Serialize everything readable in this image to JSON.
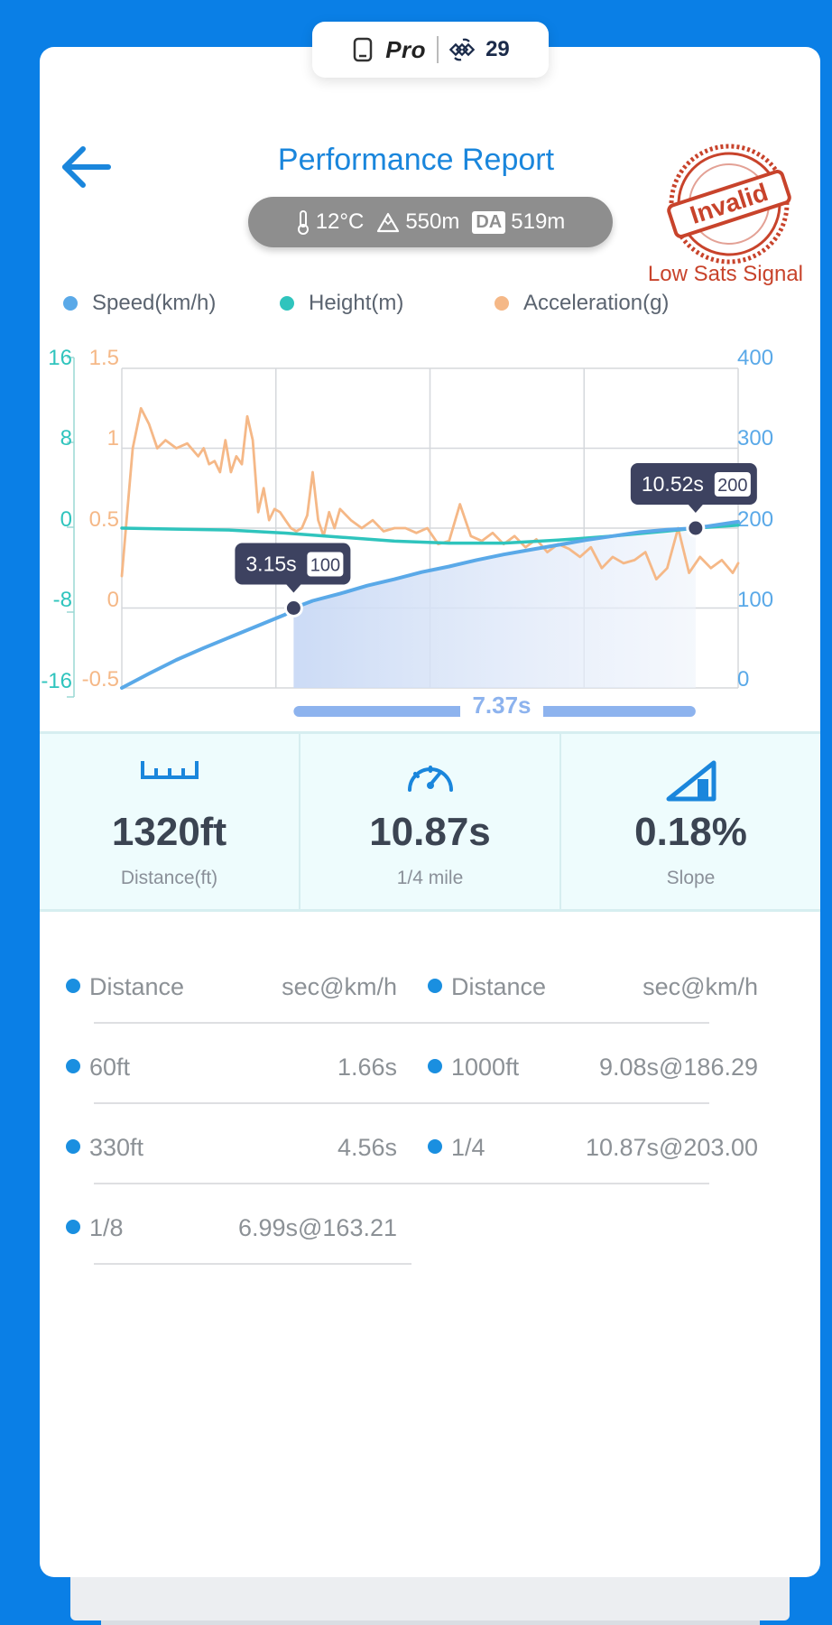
{
  "device": {
    "model_label": "Pro",
    "satellites": "29"
  },
  "header": {
    "title": "Performance Report",
    "back_icon": "arrow-left-icon"
  },
  "environment": {
    "temperature": "12°C",
    "altitude": "550m",
    "da_badge": "DA",
    "density_altitude": "519m"
  },
  "status": {
    "stamp_text": "Invalid",
    "stamp_color": "#c8432b",
    "note": "Low Sats Signal"
  },
  "legend": [
    {
      "label": "Speed(km/h)",
      "color": "#5aa9e8"
    },
    {
      "label": "Height(m)",
      "color": "#2fc4bd"
    },
    {
      "label": "Acceleration(g)",
      "color": "#f5b887"
    }
  ],
  "chart_data": {
    "type": "line",
    "x_range_s": [
      0,
      11.3
    ],
    "grid": true,
    "axes": {
      "height_left": {
        "ticks": [
          "16",
          "8",
          "0",
          "-8",
          "-16"
        ],
        "range": [
          -16,
          16
        ],
        "color": "#2fc4bd"
      },
      "accel_left": {
        "ticks": [
          "1.5",
          "1",
          "0.5",
          "0",
          "-0.5"
        ],
        "range": [
          -0.5,
          1.5
        ],
        "color": "#f5b887"
      },
      "speed_right": {
        "ticks": [
          "400",
          "300",
          "200",
          "100",
          "0"
        ],
        "range": [
          0,
          400
        ],
        "color": "#5aa9e8"
      }
    },
    "series": [
      {
        "name": "Speed(km/h)",
        "x": [
          0,
          0.5,
          1,
          1.5,
          2,
          2.5,
          3,
          3.15,
          3.5,
          4,
          4.5,
          5,
          5.5,
          6,
          6.5,
          7,
          7.5,
          8,
          8.5,
          9,
          9.5,
          10,
          10.52,
          11.3
        ],
        "y": [
          0,
          18,
          35,
          50,
          64,
          78,
          92,
          100,
          109,
          118,
          128,
          136,
          145,
          152,
          160,
          167,
          173,
          179,
          185,
          190,
          195,
          198,
          200,
          208
        ]
      },
      {
        "name": "Height(m)",
        "x": [
          0,
          1,
          2,
          3,
          4,
          5,
          6,
          7,
          8,
          9,
          10,
          10.52,
          11.3
        ],
        "y": [
          0,
          -0.1,
          -0.2,
          -0.5,
          -0.9,
          -1.3,
          -1.5,
          -1.5,
          -1.2,
          -0.8,
          -0.3,
          0,
          0.3
        ]
      },
      {
        "name": "Acceleration(g)",
        "x": [
          0,
          0.1,
          0.2,
          0.35,
          0.5,
          0.65,
          0.8,
          1,
          1.2,
          1.4,
          1.5,
          1.6,
          1.7,
          1.8,
          1.9,
          2,
          2.1,
          2.2,
          2.3,
          2.4,
          2.5,
          2.6,
          2.7,
          2.8,
          2.9,
          3,
          3.1,
          3.2,
          3.3,
          3.4,
          3.5,
          3.6,
          3.7,
          3.8,
          3.9,
          4.0,
          4.2,
          4.4,
          4.6,
          4.8,
          5.0,
          5.2,
          5.4,
          5.6,
          5.8,
          6.0,
          6.2,
          6.4,
          6.6,
          6.8,
          7.0,
          7.2,
          7.4,
          7.6,
          7.8,
          8.0,
          8.2,
          8.4,
          8.6,
          8.8,
          9.0,
          9.2,
          9.4,
          9.6,
          9.8,
          10.0,
          10.2,
          10.4,
          10.6,
          10.8,
          11.0,
          11.2,
          11.3
        ],
        "y": [
          0.2,
          0.6,
          1.0,
          1.25,
          1.15,
          1.0,
          1.05,
          1.0,
          1.03,
          0.95,
          1.0,
          0.9,
          0.92,
          0.85,
          1.05,
          0.85,
          0.95,
          0.9,
          1.2,
          1.05,
          0.6,
          0.75,
          0.55,
          0.62,
          0.6,
          0.55,
          0.5,
          0.48,
          0.5,
          0.58,
          0.85,
          0.55,
          0.45,
          0.6,
          0.5,
          0.62,
          0.55,
          0.5,
          0.55,
          0.48,
          0.5,
          0.5,
          0.47,
          0.5,
          0.4,
          0.42,
          0.65,
          0.45,
          0.42,
          0.47,
          0.4,
          0.45,
          0.38,
          0.43,
          0.35,
          0.4,
          0.37,
          0.32,
          0.38,
          0.25,
          0.32,
          0.28,
          0.3,
          0.35,
          0.18,
          0.25,
          0.5,
          0.22,
          0.32,
          0.25,
          0.3,
          0.22,
          0.28
        ]
      }
    ],
    "markers": [
      {
        "x": 3.15,
        "y": 100,
        "time_label": "3.15s",
        "speed_label": "100"
      },
      {
        "x": 10.52,
        "y": 200,
        "time_label": "10.52s",
        "speed_label": "200"
      }
    ],
    "range_label": "7.37s"
  },
  "stats": [
    {
      "value": "1320ft",
      "label": "Distance(ft)",
      "icon": "ruler-icon"
    },
    {
      "value": "10.87s",
      "label": "1/4 mile",
      "icon": "speedometer-icon"
    },
    {
      "value": "0.18%",
      "label": "Slope",
      "icon": "slope-icon"
    }
  ],
  "splits": {
    "header": {
      "name": "Distance",
      "value": "sec@km/h"
    },
    "left": [
      {
        "name": "60ft",
        "value": "1.66s"
      },
      {
        "name": "330ft",
        "value": "4.56s"
      },
      {
        "name": "1/8",
        "value": "6.99s@163.21"
      }
    ],
    "right": [
      {
        "name": "1000ft",
        "value": "9.08s@186.29"
      },
      {
        "name": "1/4",
        "value": "10.87s@203.00"
      }
    ]
  }
}
